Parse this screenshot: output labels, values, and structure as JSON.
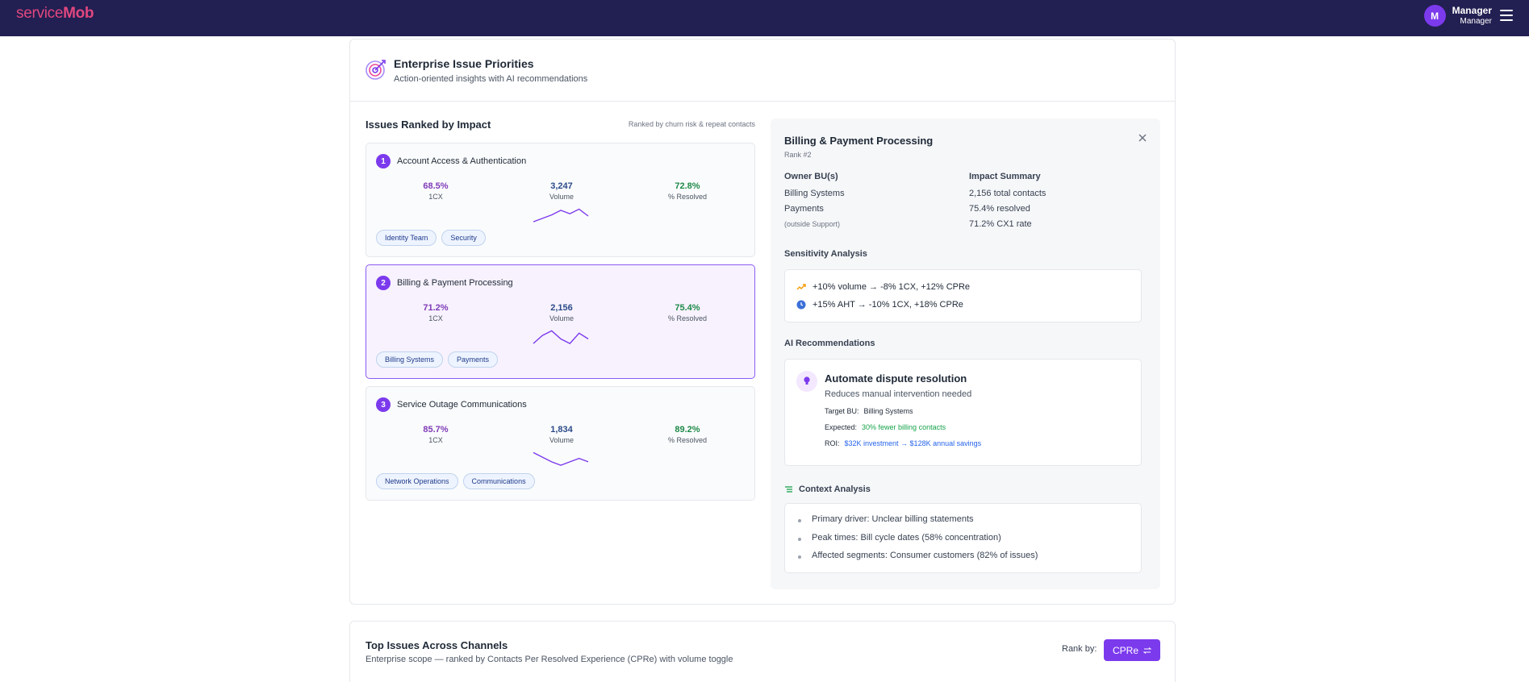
{
  "app": {
    "logo_prefix": "service",
    "logo_suffix": "Mob",
    "user_initial": "M",
    "user_name": "Manager",
    "user_role": "Manager"
  },
  "header": {
    "title": "Enterprise Issue Priorities",
    "subtitle": "Action-oriented insights with AI recommendations"
  },
  "issues_panel": {
    "title": "Issues Ranked by Impact",
    "note": "Ranked by churn risk & repeat contacts",
    "metric_labels": {
      "cx": "1CX",
      "volume": "Volume",
      "resolved": "% Resolved"
    },
    "issues": [
      {
        "rank": "1",
        "title": "Account Access & Authentication",
        "cx": "68.5%",
        "volume": "3,247",
        "resolved": "72.8%",
        "tags": [
          "Identity Team",
          "Security"
        ],
        "trend": [
          2,
          5,
          8,
          12,
          9,
          13,
          7
        ]
      },
      {
        "rank": "2",
        "title": "Billing & Payment Processing",
        "cx": "71.2%",
        "volume": "2,156",
        "resolved": "75.4%",
        "tags": [
          "Billing Systems",
          "Payments"
        ],
        "trend": [
          2,
          9,
          13,
          6,
          2,
          11,
          6
        ]
      },
      {
        "rank": "3",
        "title": "Service Outage Communications",
        "cx": "85.7%",
        "volume": "1,834",
        "resolved": "89.2%",
        "tags": [
          "Network Operations",
          "Communications"
        ],
        "trend": [
          13,
          9,
          5,
          2,
          5,
          8,
          5
        ]
      }
    ]
  },
  "detail": {
    "title": "Billing & Payment Processing",
    "rank": "Rank #2",
    "owner_label": "Owner BU(s)",
    "owners": [
      "Billing Systems",
      "Payments"
    ],
    "owner_note": "(outside Support)",
    "impact_label": "Impact Summary",
    "impact": [
      "2,156 total contacts",
      "75.4% resolved",
      "71.2% CX1 rate"
    ],
    "sensitivity_label": "Sensitivity Analysis",
    "sensitivity": [
      {
        "icon": "trend-up-icon",
        "text": "+10% volume → -8% 1CX, +12% CPRe"
      },
      {
        "icon": "clock-icon",
        "text": "+15% AHT → -10% 1CX, +18% CPRe"
      }
    ],
    "ai_label": "AI Recommendations",
    "recommendation": {
      "title": "Automate dispute resolution",
      "subtitle": "Reduces manual intervention needed",
      "target_label": "Target BU:",
      "target_value": "Billing Systems",
      "expected_label": "Expected:",
      "expected_value": "30% fewer billing contacts",
      "roi_label": "ROI:",
      "roi_value": "$32K investment → $128K annual savings"
    },
    "context_label": "Context Analysis",
    "context": [
      "Primary driver: Unclear billing statements",
      "Peak times: Bill cycle dates (58% concentration)",
      "Affected segments: Consumer customers (82% of issues)"
    ]
  },
  "bottom": {
    "title": "Top Issues Across Channels",
    "subtitle": "Enterprise scope — ranked by Contacts Per Resolved Experience (CPRe) with volume toggle",
    "rank_by_label": "Rank by:",
    "rank_button": "CPRe"
  },
  "colors": {
    "accent": "#7c3aed",
    "topbar": "#221f52",
    "logo": "#e0477f"
  }
}
